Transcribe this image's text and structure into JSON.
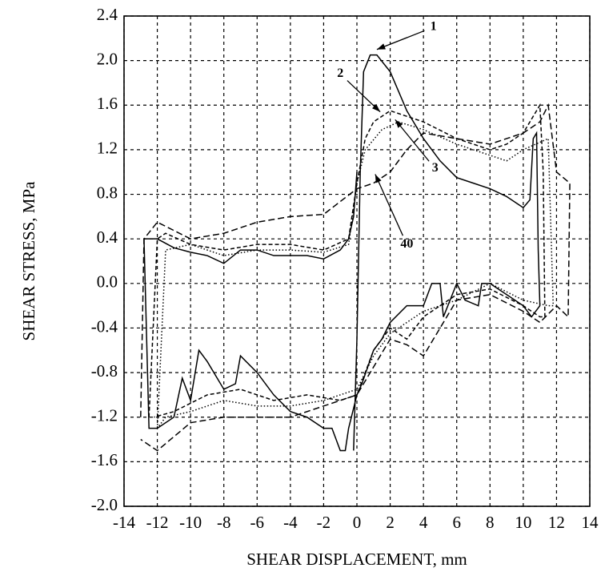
{
  "chart_data": {
    "type": "line",
    "xlabel": "SHEAR DISPLACEMENT, mm",
    "ylabel": "SHEAR STRESS, MPa",
    "xlim": [
      -14,
      14
    ],
    "ylim": [
      -2.0,
      2.4
    ],
    "xticks": [
      -14,
      -12,
      -10,
      -8,
      -6,
      -4,
      -2,
      0,
      2,
      4,
      6,
      8,
      10,
      12,
      14
    ],
    "yticks": [
      {
        "value": -2.0,
        "label": "-2.0"
      },
      -1.6,
      -1.2,
      -0.8,
      -0.4,
      {
        "value": 0,
        "label": "0.0"
      },
      0.4,
      0.8,
      1.2,
      1.6,
      {
        "value": 2.0,
        "label": "2.0"
      },
      2.4
    ],
    "grid": true,
    "series": [
      {
        "color": "#000000",
        "dash": "solid",
        "x": [
          -0.2,
          0,
          0.2,
          0.4,
          0.8,
          1.2,
          2,
          3,
          4,
          5,
          6,
          7,
          8,
          9,
          10,
          10.4,
          10.6,
          10.8,
          10.9,
          11,
          10.5,
          10,
          9,
          8,
          7.5,
          7.3,
          6.5,
          6,
          5.2,
          5,
          4.5,
          4,
          3,
          2,
          1.5,
          1,
          0.3,
          0,
          -0.5,
          -0.7,
          -1,
          -1.5,
          -2,
          -3,
          -4,
          -5,
          -6,
          -7,
          -7.3,
          -8,
          -9,
          -9.5,
          -10,
          -10.5,
          -11,
          -12,
          -12.5,
          -12.8,
          -12,
          -11,
          -10,
          -9,
          -8,
          -7,
          -6,
          -5,
          -4,
          -3,
          -2,
          -1,
          -0.5,
          -0.2,
          0
        ],
        "values": [
          -1.5,
          -0.5,
          1.0,
          1.9,
          2.05,
          2.05,
          1.9,
          1.55,
          1.3,
          1.1,
          0.95,
          0.9,
          0.85,
          0.78,
          0.68,
          0.75,
          1.3,
          1.35,
          0.3,
          -0.2,
          -0.3,
          -0.2,
          -0.1,
          0.0,
          0.0,
          -0.2,
          -0.15,
          0.0,
          -0.3,
          0.0,
          0.0,
          -0.2,
          -0.2,
          -0.35,
          -0.5,
          -0.6,
          -0.9,
          -1.0,
          -1.3,
          -1.5,
          -1.5,
          -1.3,
          -1.3,
          -1.2,
          -1.15,
          -1.0,
          -0.8,
          -0.65,
          -0.9,
          -0.95,
          -0.7,
          -0.6,
          -1.05,
          -0.85,
          -1.2,
          -1.3,
          -1.3,
          0.4,
          0.4,
          0.32,
          0.28,
          0.25,
          0.18,
          0.3,
          0.3,
          0.25,
          0.25,
          0.25,
          0.22,
          0.3,
          0.4,
          0.6,
          1.0
        ]
      },
      {
        "color": "#000000",
        "dash": "short",
        "x": [
          -12.5,
          -12,
          -11.5,
          -10,
          -8,
          -6,
          -4,
          -2,
          -0.5,
          0,
          0.5,
          1,
          2,
          3,
          4,
          6,
          8,
          9,
          10,
          11,
          11.2,
          11.3,
          11,
          10,
          8,
          6,
          5,
          4,
          3,
          2,
          1,
          0,
          -1,
          -3,
          -5,
          -7,
          -9,
          -11,
          -12.2
        ],
        "values": [
          -1.2,
          0.4,
          0.45,
          0.35,
          0.3,
          0.35,
          0.35,
          0.3,
          0.4,
          0.9,
          1.3,
          1.45,
          1.55,
          1.5,
          1.45,
          1.3,
          1.2,
          1.25,
          1.35,
          1.6,
          1.0,
          -0.3,
          -0.3,
          -0.2,
          -0.05,
          -0.1,
          -0.2,
          -0.3,
          -0.5,
          -0.4,
          -0.6,
          -1.0,
          -1.05,
          -1.0,
          -1.05,
          -0.95,
          -1.0,
          -1.15,
          -1.2
        ]
      },
      {
        "color": "#000000",
        "dash": "dotted",
        "x": [
          -12,
          -11.5,
          -10,
          -8,
          -6,
          -4,
          -2,
          -0.5,
          0,
          0.5,
          1.5,
          2.5,
          4,
          6,
          8,
          9,
          10,
          11.5,
          11.8,
          11.5,
          10,
          8,
          6,
          4,
          3,
          2,
          1,
          0,
          -2,
          -4,
          -6,
          -8,
          -10,
          -11.5,
          -12
        ],
        "values": [
          -1.3,
          0.3,
          0.35,
          0.25,
          0.3,
          0.3,
          0.28,
          0.35,
          0.9,
          1.2,
          1.38,
          1.45,
          1.38,
          1.25,
          1.15,
          1.1,
          1.2,
          1.3,
          -0.2,
          -0.2,
          -0.15,
          0.0,
          -0.15,
          -0.25,
          -0.35,
          -0.45,
          -0.65,
          -0.95,
          -1.05,
          -1.1,
          -1.1,
          -1.05,
          -1.15,
          -1.2,
          -1.3
        ]
      },
      {
        "color": "#000000",
        "dash": "long",
        "x": [
          -13,
          -12.8,
          -12,
          -10,
          -8,
          -6,
          -4,
          -2,
          0,
          1,
          2,
          3,
          4,
          6,
          8,
          10,
          11,
          11.5,
          12,
          12.8,
          12.7,
          12,
          11,
          10,
          8,
          6,
          4,
          3,
          2,
          1,
          0,
          -2,
          -4,
          -6,
          -8,
          -10,
          -12,
          -13
        ],
        "values": [
          -1.2,
          0.4,
          0.55,
          0.4,
          0.45,
          0.55,
          0.6,
          0.62,
          0.85,
          0.9,
          1.0,
          1.2,
          1.35,
          1.3,
          1.25,
          1.35,
          1.45,
          1.6,
          1.0,
          0.9,
          -0.3,
          -0.2,
          -0.35,
          -0.25,
          -0.1,
          -0.15,
          -0.65,
          -0.55,
          -0.5,
          -0.75,
          -1.0,
          -1.1,
          -1.2,
          -1.2,
          -1.2,
          -1.25,
          -1.5,
          -1.4
        ]
      }
    ],
    "annotations": [
      {
        "text": "1",
        "xy": [
          1.2,
          2.1
        ],
        "xytext": [
          4.6,
          2.3
        ]
      },
      {
        "text": "2",
        "xy": [
          1.4,
          1.54
        ],
        "xytext": [
          -1.0,
          1.88
        ]
      },
      {
        "text": "3",
        "xy": [
          2.3,
          1.47
        ],
        "xytext": [
          4.7,
          1.03
        ]
      },
      {
        "text": "40",
        "xy": [
          1.1,
          0.98
        ],
        "xytext": [
          3.0,
          0.35
        ]
      }
    ]
  }
}
